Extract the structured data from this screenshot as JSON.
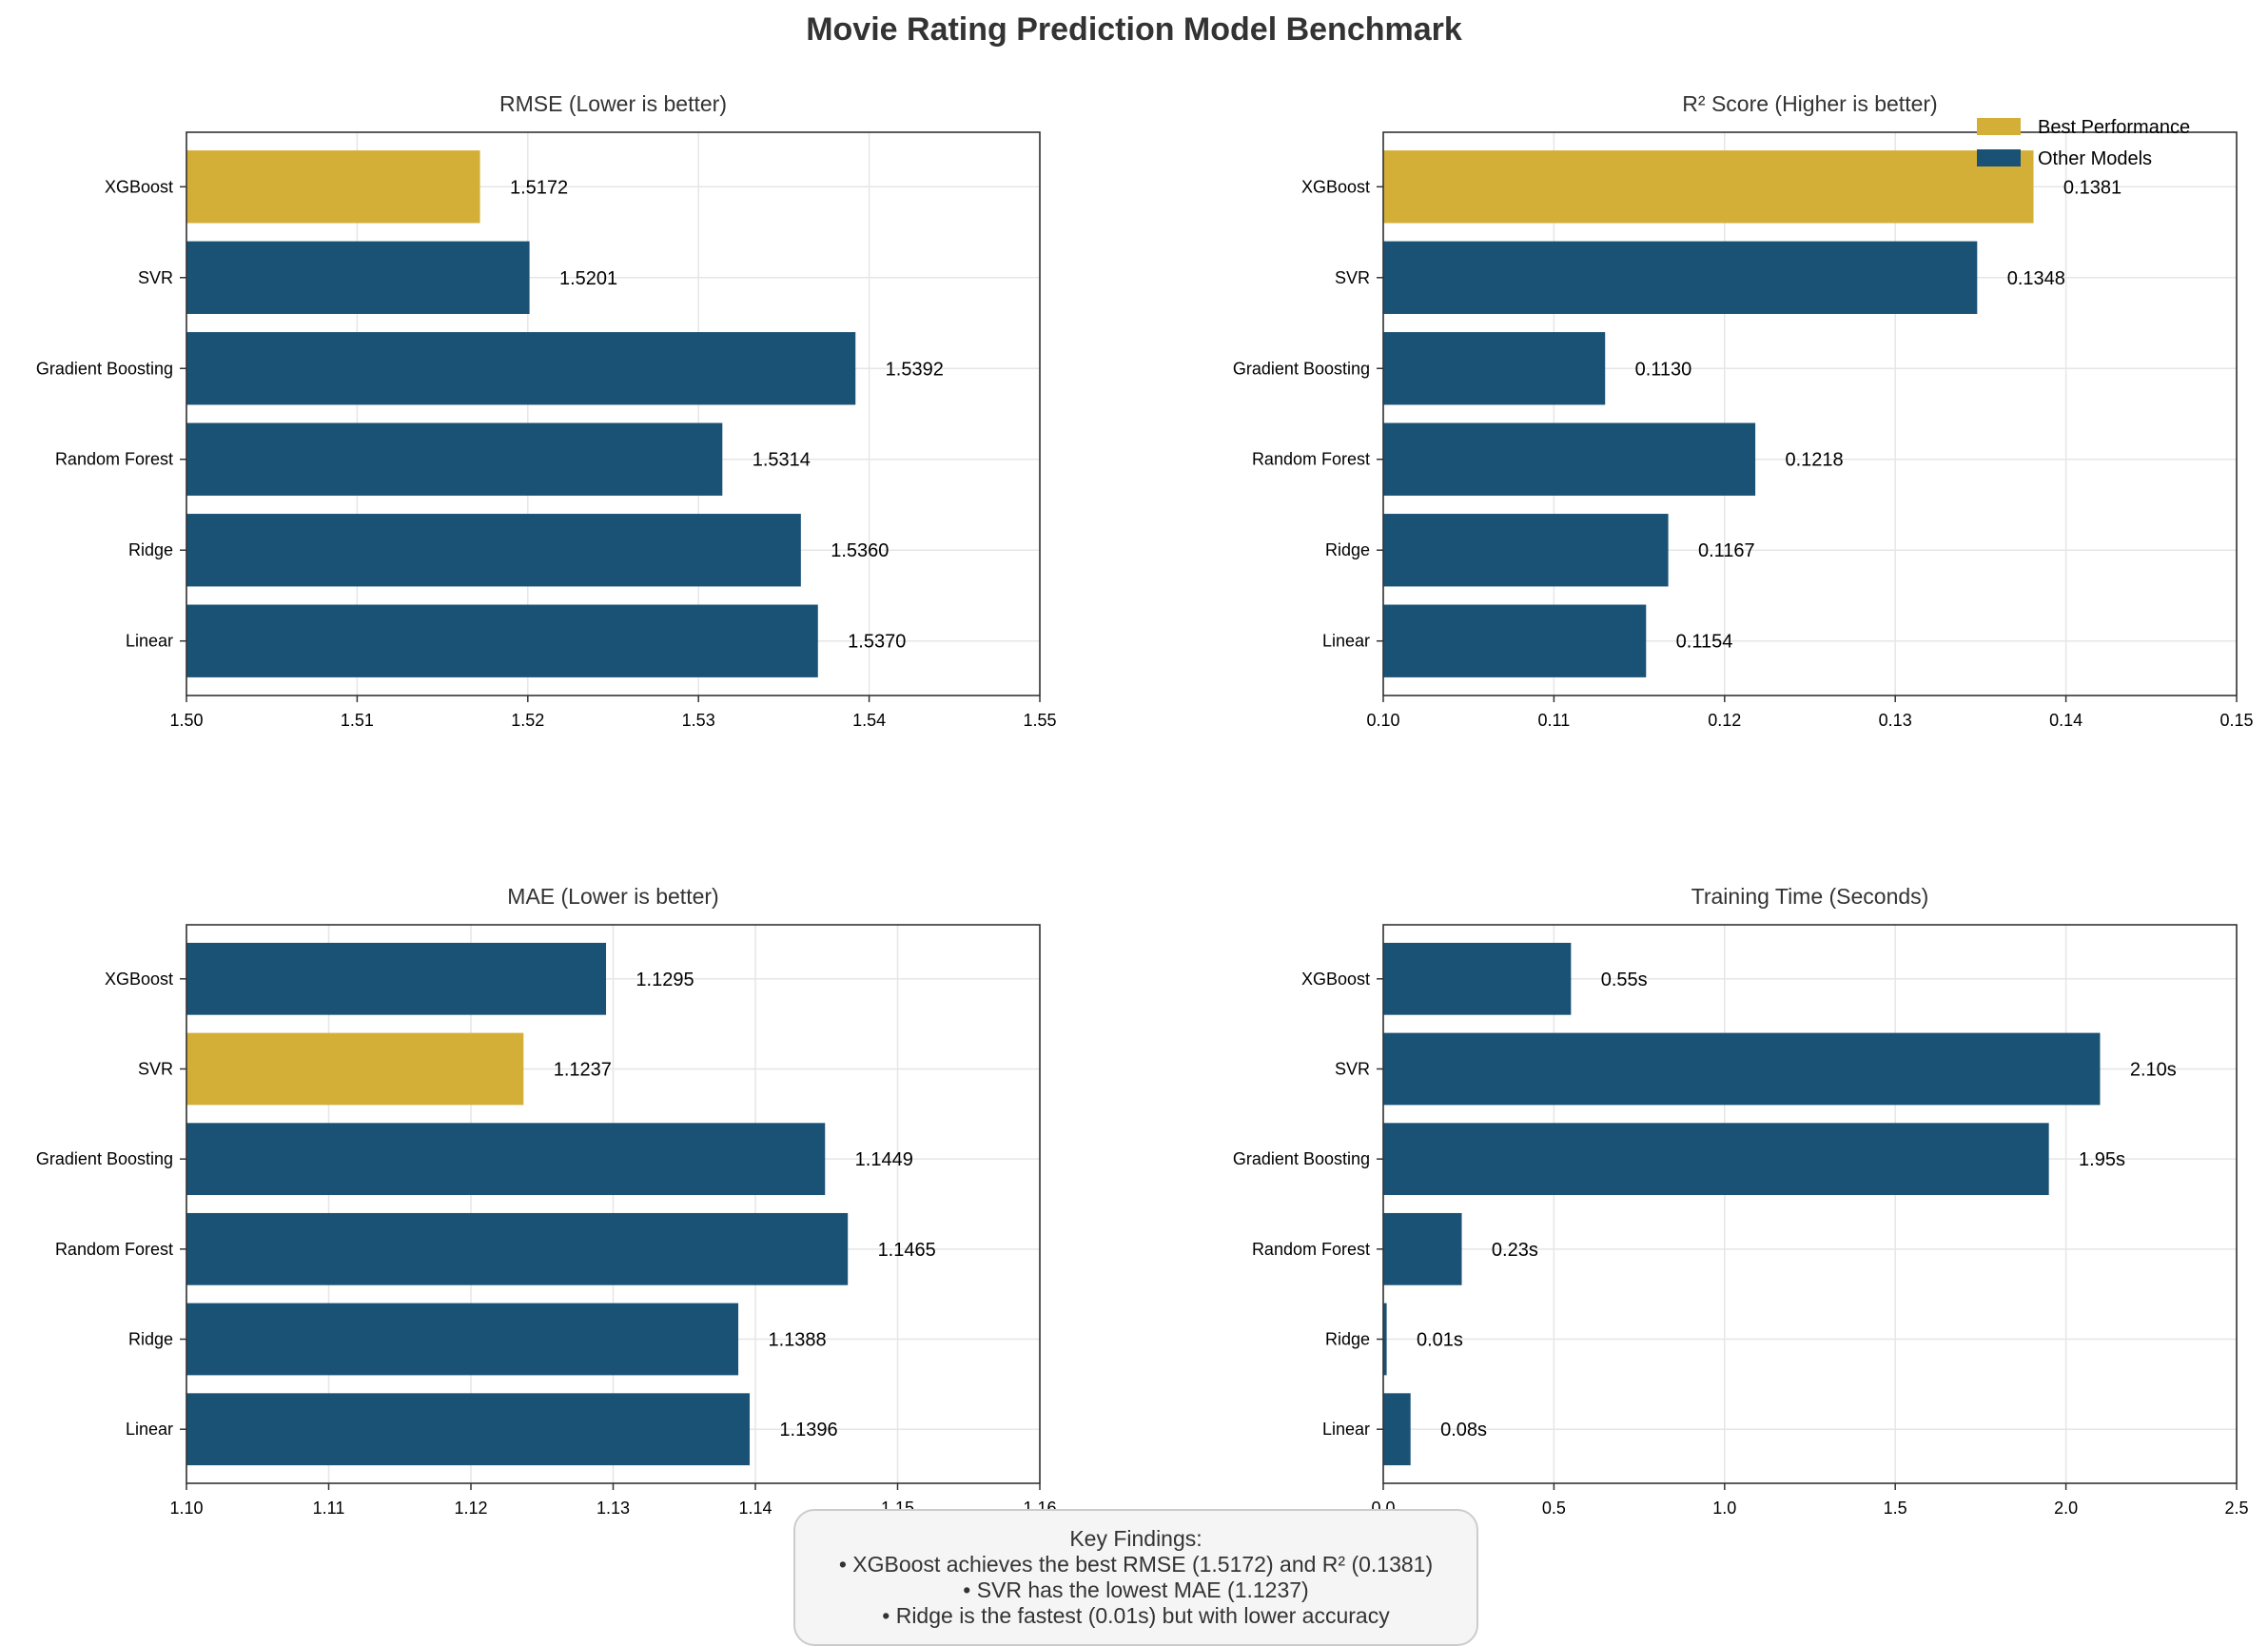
{
  "figure": {
    "title": "Movie Rating Prediction Model Benchmark"
  },
  "legend": {
    "items": [
      {
        "label": "Best Performance",
        "color": "#d4af37"
      },
      {
        "label": "Other Models",
        "color": "#1a5276"
      }
    ],
    "placement": "top-right"
  },
  "colors": {
    "best": "#d4af37",
    "other": "#1a5276"
  },
  "chart_data": [
    {
      "type": "bar",
      "orientation": "horizontal",
      "title": "RMSE (Lower is better)",
      "categories": [
        "Linear",
        "Ridge",
        "Random Forest",
        "Gradient Boosting",
        "SVR",
        "XGBoost"
      ],
      "values": [
        1.537,
        1.536,
        1.5314,
        1.5392,
        1.5201,
        1.5172
      ],
      "data_labels": [
        "1.5370",
        "1.5360",
        "1.5314",
        "1.5392",
        "1.5201",
        "1.5172"
      ],
      "best_index": 5,
      "xlim": [
        1.5,
        1.55
      ],
      "xticks": [
        1.5,
        1.51,
        1.52,
        1.53,
        1.54,
        1.55
      ],
      "xtick_labels": [
        "1.50",
        "1.51",
        "1.52",
        "1.53",
        "1.54",
        "1.55"
      ],
      "grid": true
    },
    {
      "type": "bar",
      "orientation": "horizontal",
      "title": "R² Score (Higher is better)",
      "categories": [
        "Linear",
        "Ridge",
        "Random Forest",
        "Gradient Boosting",
        "SVR",
        "XGBoost"
      ],
      "values": [
        0.1154,
        0.1167,
        0.1218,
        0.113,
        0.1348,
        0.1381
      ],
      "data_labels": [
        "0.1154",
        "0.1167",
        "0.1218",
        "0.1130",
        "0.1348",
        "0.1381"
      ],
      "best_index": 5,
      "xlim": [
        0.1,
        0.15
      ],
      "xticks": [
        0.1,
        0.11,
        0.12,
        0.13,
        0.14,
        0.15
      ],
      "xtick_labels": [
        "0.10",
        "0.11",
        "0.12",
        "0.13",
        "0.14",
        "0.15"
      ],
      "grid": true
    },
    {
      "type": "bar",
      "orientation": "horizontal",
      "title": "MAE (Lower is better)",
      "categories": [
        "Linear",
        "Ridge",
        "Random Forest",
        "Gradient Boosting",
        "SVR",
        "XGBoost"
      ],
      "values": [
        1.1396,
        1.1388,
        1.1465,
        1.1449,
        1.1237,
        1.1295
      ],
      "data_labels": [
        "1.1396",
        "1.1388",
        "1.1465",
        "1.1449",
        "1.1237",
        "1.1295"
      ],
      "best_index": 4,
      "xlim": [
        1.1,
        1.16
      ],
      "xticks": [
        1.1,
        1.11,
        1.12,
        1.13,
        1.14,
        1.15,
        1.16
      ],
      "xtick_labels": [
        "1.10",
        "1.11",
        "1.12",
        "1.13",
        "1.14",
        "1.15",
        "1.16"
      ],
      "grid": true
    },
    {
      "type": "bar",
      "orientation": "horizontal",
      "title": "Training Time (Seconds)",
      "categories": [
        "Linear",
        "Ridge",
        "Random Forest",
        "Gradient Boosting",
        "SVR",
        "XGBoost"
      ],
      "values": [
        0.08,
        0.01,
        0.23,
        1.95,
        2.1,
        0.55
      ],
      "data_labels": [
        "0.08s",
        "0.01s",
        "0.23s",
        "1.95s",
        "2.10s",
        "0.55s"
      ],
      "best_index": -1,
      "xlim": [
        0.0,
        2.5
      ],
      "xticks": [
        0.0,
        0.5,
        1.0,
        1.5,
        2.0,
        2.5
      ],
      "xtick_labels": [
        "0.0",
        "0.5",
        "1.0",
        "1.5",
        "2.0",
        "2.5"
      ],
      "grid": true
    }
  ],
  "key_findings": {
    "heading": "Key Findings:",
    "lines": [
      "• XGBoost achieves the best RMSE (1.5172) and R² (0.1381)",
      "• SVR has the lowest MAE (1.1237)",
      "• Ridge is the fastest (0.01s) but with lower accuracy"
    ]
  }
}
